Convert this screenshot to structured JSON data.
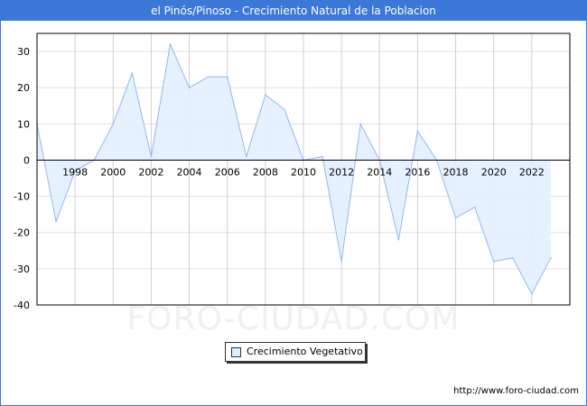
{
  "title": "el Pinós/Pinoso - Crecimiento Natural de la Poblacion",
  "watermark": "FORO-CIUDAD.COM",
  "url": "http://www.foro-ciudad.com",
  "colors": {
    "line": "#8fb8f0",
    "fill": "#e3f0ff",
    "title_bg": "#3c78d8"
  },
  "chart_data": {
    "type": "area",
    "title": "el Pinós/Pinoso - Crecimiento Natural de la Poblacion",
    "xlabel": "",
    "ylabel": "",
    "x": [
      1996,
      1997,
      1998,
      1999,
      2000,
      2001,
      2002,
      2003,
      2004,
      2005,
      2006,
      2007,
      2008,
      2009,
      2010,
      2011,
      2012,
      2013,
      2014,
      2015,
      2016,
      2017,
      2018,
      2019,
      2020,
      2021,
      2022,
      2023
    ],
    "series": [
      {
        "name": "Crecimiento Vegetativo",
        "values": [
          10,
          -17,
          -3,
          0,
          10,
          24,
          1,
          32,
          20,
          23,
          23,
          1,
          18,
          14,
          0,
          1,
          -28,
          10,
          0,
          -22,
          8,
          0,
          -16,
          -13,
          -28,
          -27,
          -37,
          -27
        ]
      }
    ],
    "xlim": [
      1996,
      2024
    ],
    "ylim": [
      -40,
      35
    ],
    "xticks": [
      "1998",
      "2000",
      "2002",
      "2004",
      "2006",
      "2008",
      "2010",
      "2012",
      "2014",
      "2016",
      "2018",
      "2020",
      "2022"
    ],
    "yticks": [
      "-40",
      "-30",
      "-20",
      "-10",
      "0",
      "10",
      "20",
      "30"
    ],
    "grid": true,
    "legend": "bottom-center"
  }
}
